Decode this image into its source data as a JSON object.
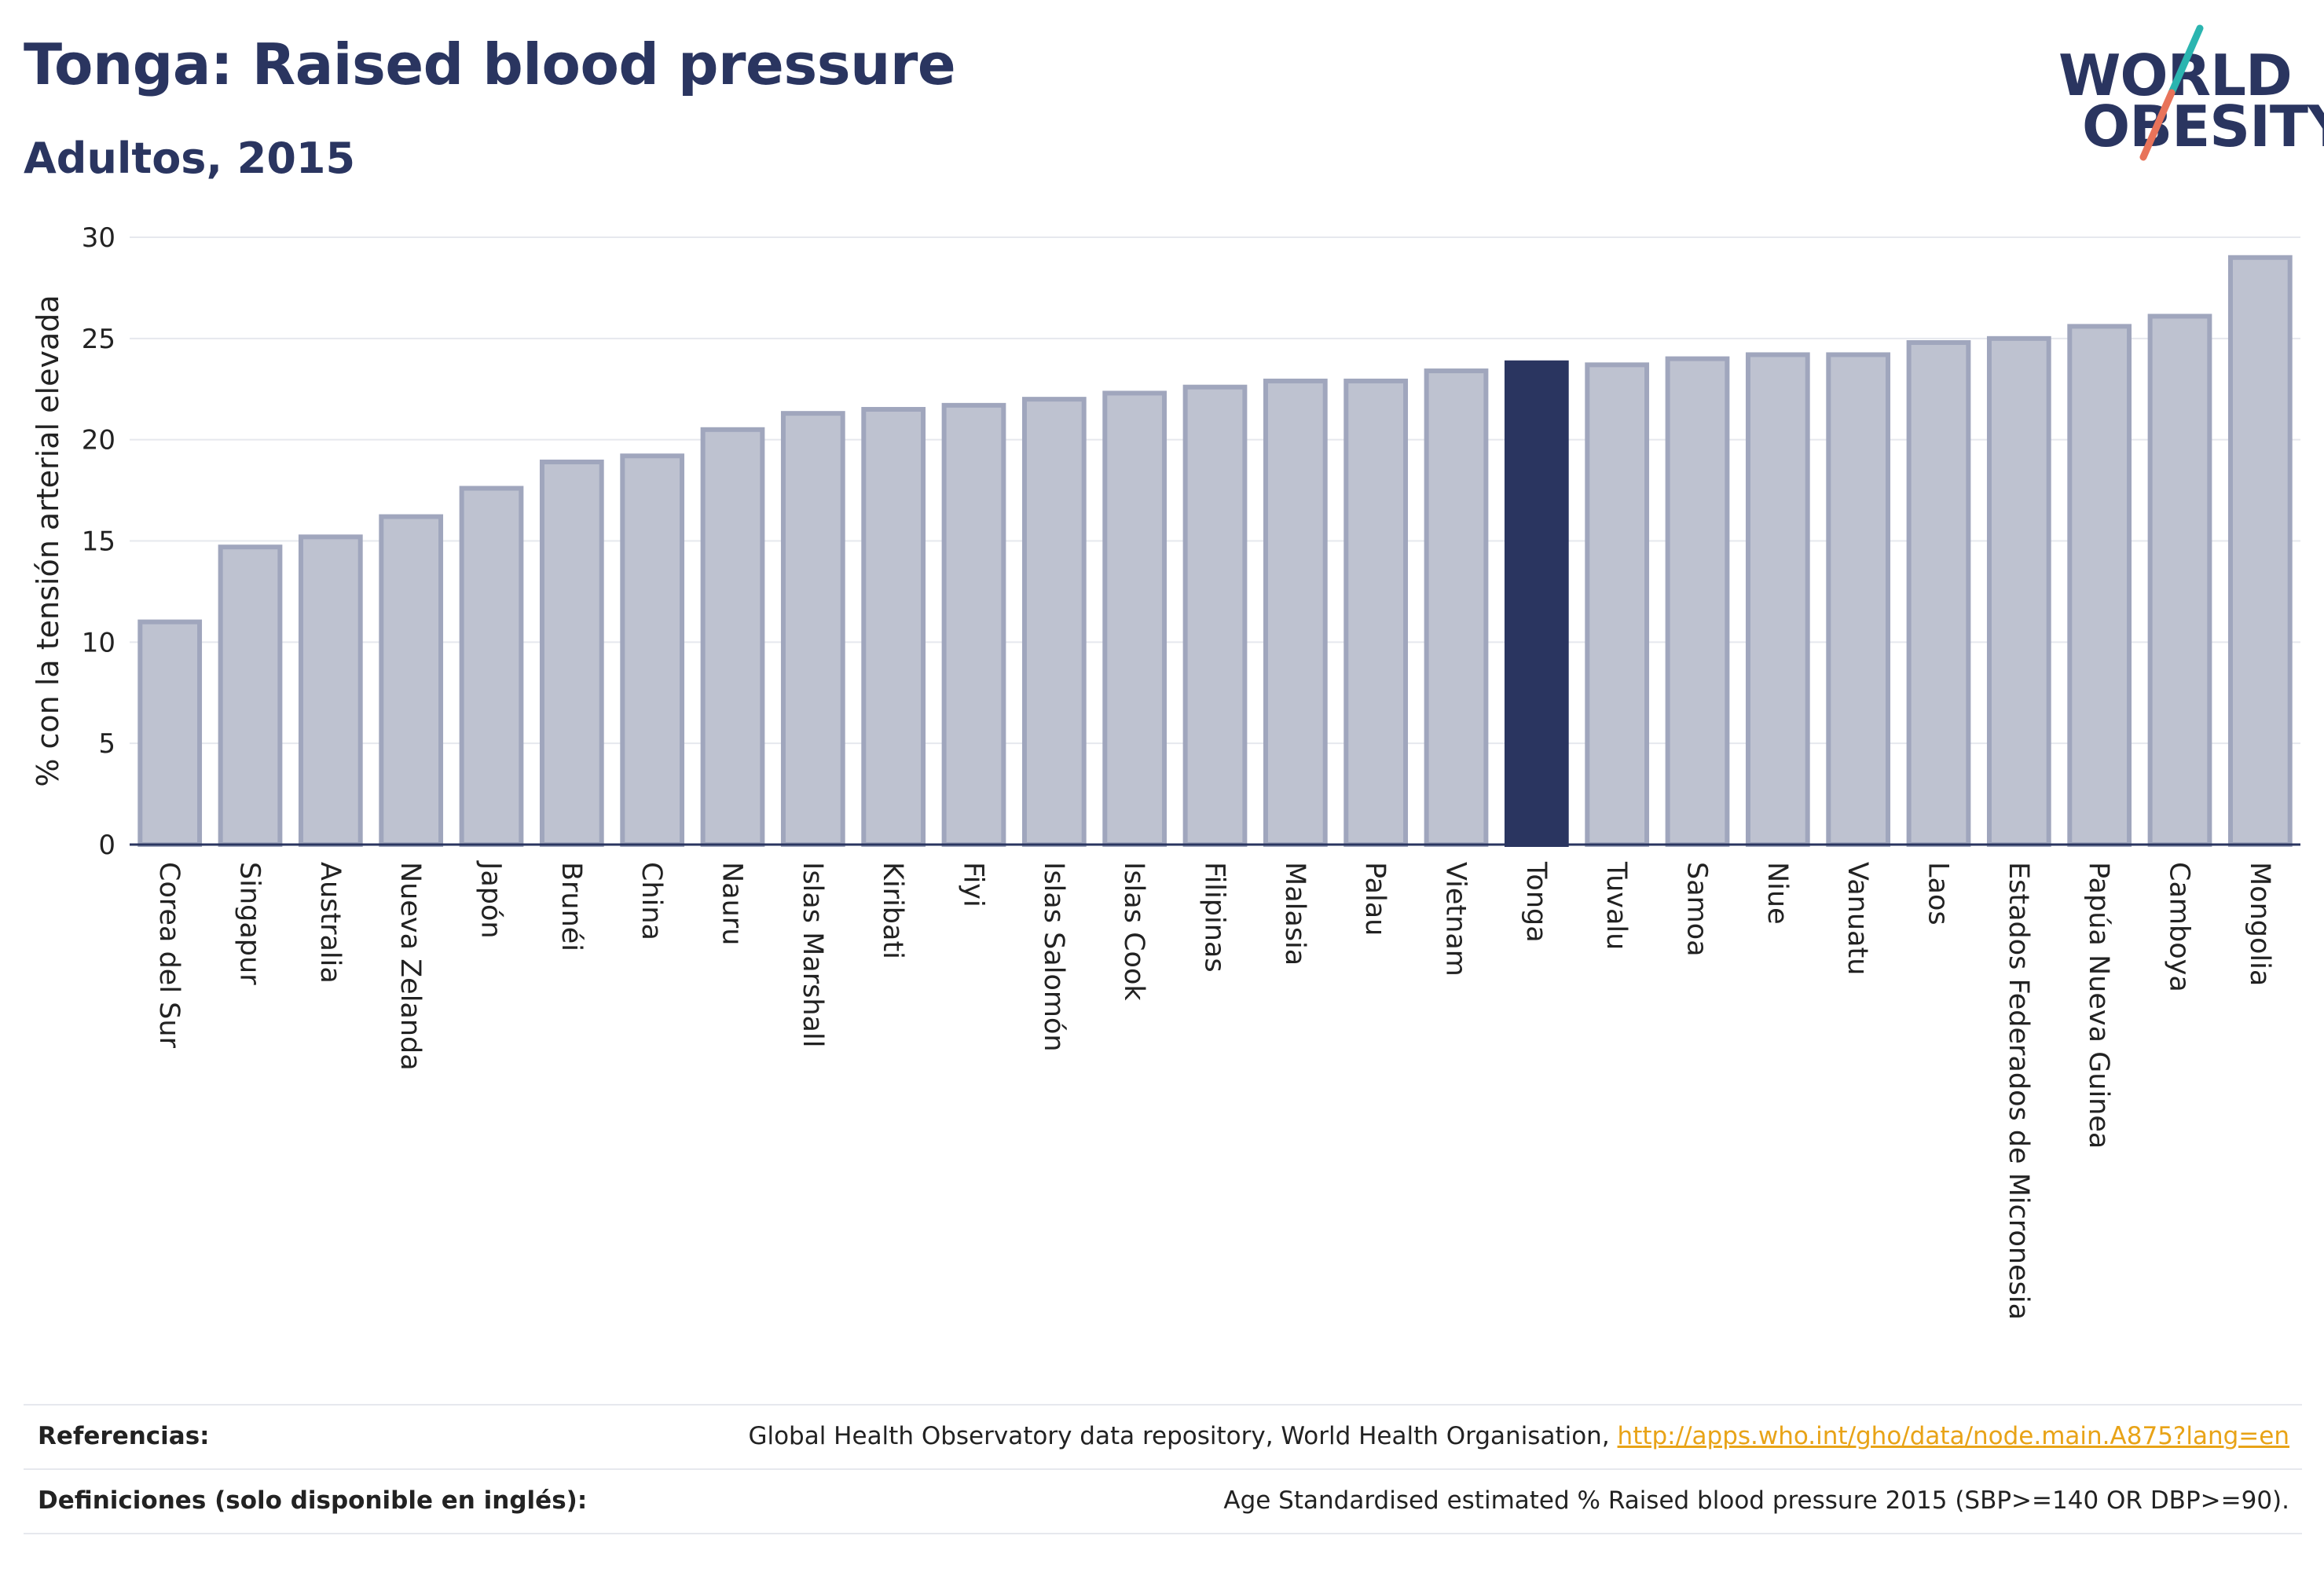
{
  "header": {
    "title": "Tonga: Raised blood pressure",
    "subtitle": "Adultos, 2015"
  },
  "logo": {
    "line1": "WORLD",
    "line2": "OBESITY",
    "accent_teal": "#2bb5b0",
    "accent_coral": "#e8735a"
  },
  "colors": {
    "bar_fill": "#bec2d0",
    "bar_border": "#a0a6bd",
    "highlight": "#2a3560",
    "grid": "#e6e8ee",
    "axis": "#2a3560"
  },
  "chart_data": {
    "type": "bar",
    "ylabel": "% con la tensión arterial elevada",
    "ylim": [
      0,
      30
    ],
    "yticks": [
      0,
      5,
      10,
      15,
      20,
      25,
      30
    ],
    "grid": true,
    "highlight": "Tonga",
    "categories": [
      "Corea del Sur",
      "Singapur",
      "Australia",
      "Nueva Zelanda",
      "Japón",
      "Brunéi",
      "China",
      "Nauru",
      "Islas Marshall",
      "Kiribati",
      "Fiyi",
      "Islas Salomón",
      "Islas Cook",
      "Filipinas",
      "Malasia",
      "Palau",
      "Vietnam",
      "Tonga",
      "Tuvalu",
      "Samoa",
      "Niue",
      "Vanuatu",
      "Laos",
      "Estados Federados de Micronesia",
      "Papúa Nueva Guinea",
      "Camboya",
      "Mongolia"
    ],
    "values": [
      11.0,
      14.7,
      15.2,
      16.2,
      17.6,
      18.9,
      19.2,
      20.5,
      21.3,
      21.5,
      21.7,
      22.0,
      22.3,
      22.6,
      22.9,
      22.9,
      23.4,
      23.8,
      23.7,
      24.0,
      24.2,
      24.2,
      24.8,
      25.0,
      25.6,
      26.1,
      29.0
    ]
  },
  "footer": {
    "references_label": "Referencias:",
    "references_text": "Global Health Observatory data repository, World Health Organisation, ",
    "references_link": "http://apps.who.int/gho/data/node.main.A875?lang=en",
    "definitions_label": "Definiciones (solo disponible en inglés):",
    "definitions_text": "Age Standardised estimated % Raised blood pressure 2015 (SBP>=140 OR DBP>=90)."
  }
}
